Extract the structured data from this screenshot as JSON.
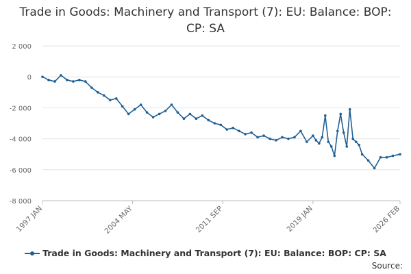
{
  "chart_data": {
    "type": "line",
    "title": "Trade in Goods: Machinery and Transport (7): EU: Balance: BOP: CP: SA",
    "xlabel": "",
    "ylabel": "",
    "ylim": [
      -8000,
      2000
    ],
    "y_ticks": [
      "2 000",
      "0",
      "-2 000",
      "-4 000",
      "-6 000",
      "-8 000"
    ],
    "y_tick_values": [
      2000,
      0,
      -2000,
      -4000,
      -6000,
      -8000
    ],
    "x_ticks": [
      "1997 JAN",
      "2004 MAY",
      "2011 SEP",
      "2019 JAN",
      "2026 FEB"
    ],
    "x_tick_values": [
      "1997-01",
      "2004-05",
      "2011-09",
      "2019-01",
      "2026-02"
    ],
    "grid": "horizontal",
    "legend_position": "bottom",
    "color": "#206095",
    "series": [
      {
        "name": "Trade in Goods: Machinery and Transport (7): EU: Balance: BOP: CP: SA",
        "x": [
          "1997-01",
          "1997-07",
          "1998-01",
          "1998-07",
          "1999-01",
          "1999-07",
          "2000-01",
          "2000-07",
          "2001-01",
          "2001-07",
          "2002-01",
          "2002-07",
          "2003-01",
          "2003-07",
          "2004-01",
          "2004-07",
          "2005-01",
          "2005-07",
          "2006-01",
          "2006-07",
          "2007-01",
          "2007-07",
          "2008-01",
          "2008-07",
          "2009-01",
          "2009-07",
          "2010-01",
          "2010-07",
          "2011-01",
          "2011-07",
          "2012-01",
          "2012-07",
          "2013-01",
          "2013-07",
          "2014-01",
          "2014-07",
          "2015-01",
          "2015-07",
          "2016-01",
          "2016-07",
          "2017-01",
          "2017-07",
          "2018-01",
          "2018-07",
          "2019-01",
          "2019-04",
          "2019-07",
          "2019-10",
          "2020-01",
          "2020-04",
          "2020-07",
          "2020-10",
          "2021-01",
          "2021-04",
          "2021-07",
          "2021-10",
          "2022-01",
          "2022-04",
          "2022-07",
          "2022-10",
          "2023-01",
          "2023-07",
          "2024-01",
          "2024-07",
          "2025-01",
          "2025-07",
          "2026-02"
        ],
        "values": [
          0,
          -200,
          -300,
          100,
          -200,
          -300,
          -200,
          -300,
          -700,
          -1000,
          -1200,
          -1500,
          -1400,
          -1900,
          -2400,
          -2100,
          -1800,
          -2300,
          -2600,
          -2400,
          -2200,
          -1800,
          -2300,
          -2700,
          -2400,
          -2700,
          -2500,
          -2800,
          -3000,
          -3100,
          -3400,
          -3300,
          -3500,
          -3700,
          -3600,
          -3900,
          -3800,
          -4000,
          -4100,
          -3900,
          -4000,
          -3900,
          -3500,
          -4200,
          -3800,
          -4100,
          -4300,
          -3900,
          -2500,
          -4200,
          -4500,
          -5100,
          -3500,
          -2400,
          -3600,
          -4500,
          -2100,
          -4000,
          -4200,
          -4400,
          -5000,
          -5400,
          -5900,
          -5200,
          -5200,
          -5100,
          -5000
        ]
      }
    ]
  },
  "footer": {
    "source_label": "Source:"
  }
}
